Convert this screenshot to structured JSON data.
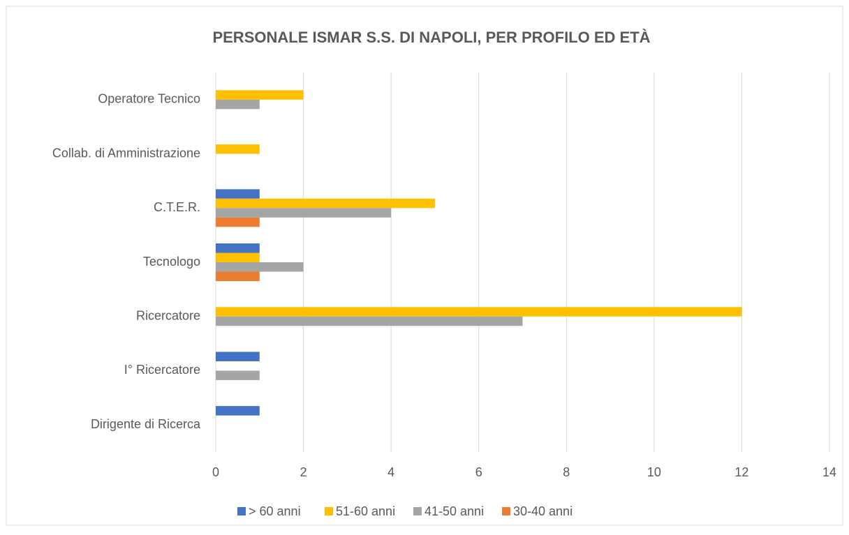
{
  "chart_data": {
    "type": "hbar",
    "title": "PERSONALE ISMAR S.S. DI NAPOLI, PER PROFILO ED ETÀ",
    "categories": [
      "Dirigente di Ricerca",
      "I° Ricercatore",
      "Ricercatore",
      "Tecnologo",
      "C.T.E.R.",
      "Collab. di Amministrazione",
      "Operatore Tecnico"
    ],
    "series": [
      {
        "name": "> 60 anni",
        "color": "#4472c4",
        "values": [
          1,
          1,
          0,
          1,
          1,
          0,
          0
        ]
      },
      {
        "name": "51-60 anni",
        "color": "#ffc000",
        "values": [
          0,
          0,
          12,
          1,
          5,
          1,
          2
        ]
      },
      {
        "name": "41-50 anni",
        "color": "#a5a5a5",
        "values": [
          0,
          1,
          7,
          2,
          4,
          0,
          1
        ]
      },
      {
        "name": "30-40 anni",
        "color": "#ed7d31",
        "values": [
          0,
          0,
          0,
          1,
          1,
          0,
          0
        ]
      }
    ],
    "xlim": [
      0,
      14
    ],
    "xticks": [
      0,
      2,
      4,
      6,
      8,
      10,
      12,
      14
    ],
    "grid": true,
    "legend": "bottom"
  }
}
